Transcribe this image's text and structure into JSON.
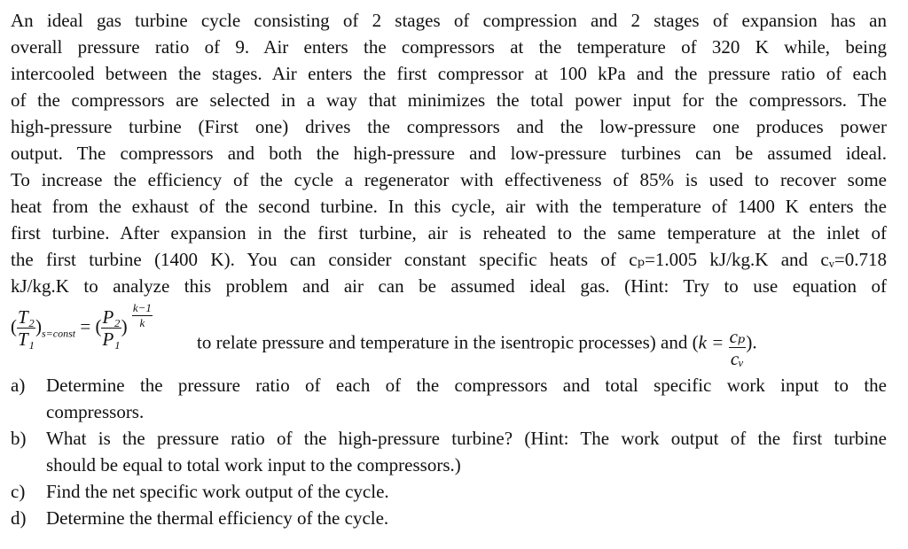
{
  "paragraph_lines": [
    "An ideal gas turbine cycle consisting of 2 stages of compression and 2 stages of expansion has an",
    "overall pressure ratio of 9. Air enters the compressors at the temperature of 320 K while, being",
    "intercooled between the stages. Air enters the first compressor at 100 kPa and the pressure ratio of each",
    "of the compressors are selected in a way that minimizes the total power input for the compressors. The",
    "high-pressure turbine (First one) drives the compressors and the low-pressure one produces power",
    "output. The compressors and both the high-pressure and low-pressure turbines can be assumed ideal.",
    "To increase the efficiency of the cycle a regenerator with effectiveness of 85% is used to recover some",
    "heat from the exhaust of the second turbine. In this cycle, air with the temperature of 1400 K enters the",
    "first turbine. After expansion in the first turbine, air is reheated to the same temperature at the inlet of",
    "the first turbine (1400 K). You can consider constant specific heats of cₚ=1.005 kJ/kg.K and cᵥ=0.718",
    "kJ/kg.K to analyze this problem and air can be assumed ideal gas. (Hint: Try to use equation of"
  ],
  "equation": {
    "t2": "T₂",
    "t1": "T₁",
    "sub": "s=const",
    "eq": "=",
    "p2": "P₂",
    "p1": "P₁",
    "exp_num": "k−1",
    "exp_den": "k",
    "text": "to relate pressure and temperature in the isentropic processes) and (",
    "k": "k =",
    "cp": "cₚ",
    "cv": "cᵥ",
    "close": ")."
  },
  "questions": [
    {
      "label": "a)",
      "lines": [
        "Determine the pressure ratio of each of the compressors and total specific work input to the",
        "compressors."
      ]
    },
    {
      "label": "b)",
      "lines": [
        "What is the pressure ratio of the high-pressure turbine? (Hint: The work output of the first turbine",
        "should be equal to total work input to the compressors.)"
      ]
    },
    {
      "label": "c)",
      "lines": [
        "Find the net specific work output of the cycle."
      ]
    },
    {
      "label": "d)",
      "lines": [
        "Determine the thermal efficiency of the cycle."
      ]
    }
  ]
}
